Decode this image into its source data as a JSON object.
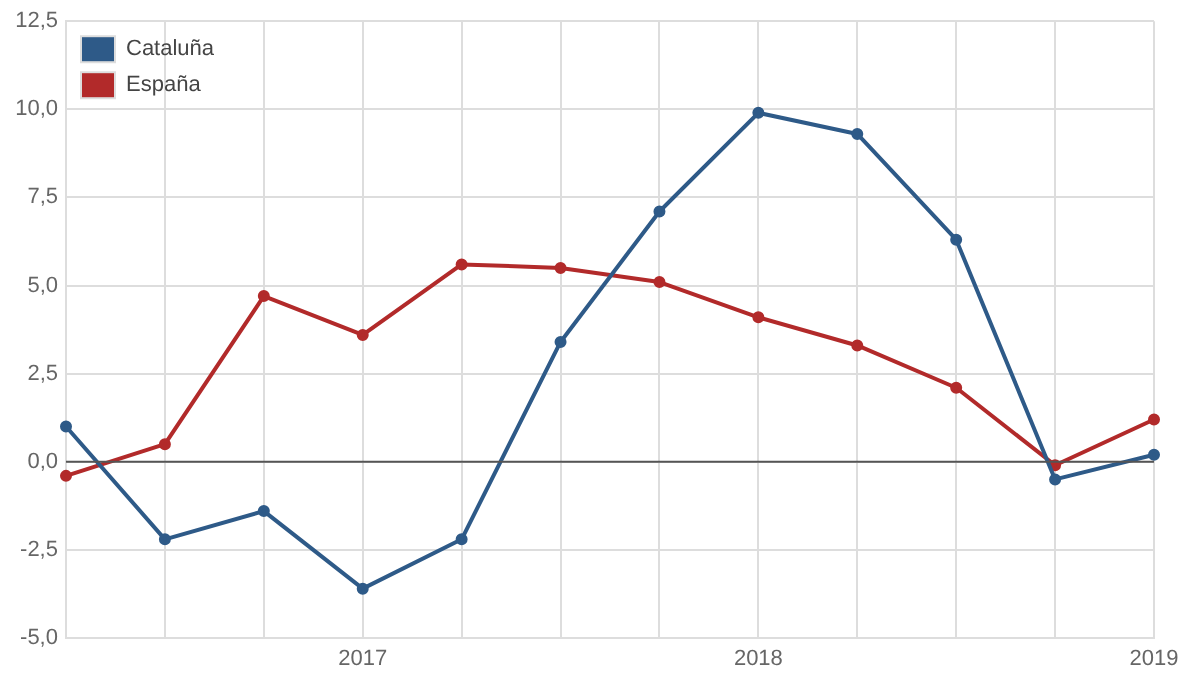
{
  "chart_data": {
    "type": "line",
    "categories": [
      null,
      null,
      null,
      "2017",
      null,
      null,
      null,
      "2018",
      null,
      null,
      null,
      "2019"
    ],
    "series": [
      {
        "name": "Cataluña",
        "color": "#2e5a88",
        "values": [
          1.0,
          -2.2,
          -1.4,
          -3.6,
          -2.2,
          3.4,
          7.1,
          9.9,
          9.3,
          6.3,
          -0.5,
          0.2
        ]
      },
      {
        "name": "España",
        "color": "#b22a2a",
        "values": [
          -0.4,
          0.5,
          4.7,
          3.6,
          5.6,
          5.5,
          5.1,
          4.1,
          3.3,
          2.1,
          -0.1,
          1.2
        ]
      }
    ],
    "ylim": [
      -5,
      12.5
    ],
    "yticks": [
      {
        "value": -5,
        "label": "-5,0"
      },
      {
        "value": -2.5,
        "label": "-2,5"
      },
      {
        "value": 0,
        "label": "0,0"
      },
      {
        "value": 2.5,
        "label": "2,5"
      },
      {
        "value": 5,
        "label": "5,0"
      },
      {
        "value": 7.5,
        "label": "7,5"
      },
      {
        "value": 10,
        "label": "10,0"
      },
      {
        "value": 12.5,
        "label": "12,5"
      }
    ],
    "ref_lines": [
      {
        "axis": "y",
        "value": 0,
        "color": "#555555"
      }
    ],
    "grid": true,
    "legend": "top left",
    "marker": "circle",
    "line_style": "solid"
  }
}
